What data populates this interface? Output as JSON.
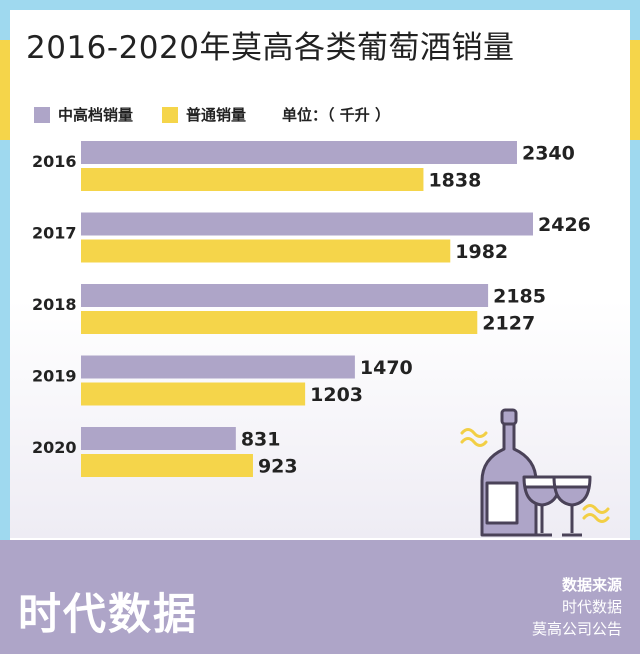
{
  "title": "2016-2020年莫高各类葡萄酒销量",
  "legend": {
    "premium": "中高档销量",
    "regular": "普通销量",
    "unit": "单位：（ 千升 ）"
  },
  "colors": {
    "premium": "#aea5c8",
    "regular": "#f5d54a",
    "frame": "#9fd9ef"
  },
  "chart_data": {
    "type": "bar",
    "orientation": "horizontal",
    "categories": [
      "2016",
      "2017",
      "2018",
      "2019",
      "2020"
    ],
    "series": [
      {
        "name": "中高档销量",
        "values": [
          2340,
          2426,
          2185,
          1470,
          831
        ]
      },
      {
        "name": "普通销量",
        "values": [
          1838,
          1982,
          2127,
          1203,
          923
        ]
      }
    ],
    "title": "2016-2020年莫高各类葡萄酒销量",
    "xlabel": "",
    "ylabel": "",
    "unit": "千升",
    "xlim": [
      0,
      2500
    ],
    "grid": false,
    "legend_position": "top-left"
  },
  "footer": {
    "brand": "时代数据",
    "source_heading": "数据来源",
    "source_1": "时代数据",
    "source_2": "莫高公司公告"
  },
  "decoration_icon": "wine-bottle-and-glasses-icon"
}
